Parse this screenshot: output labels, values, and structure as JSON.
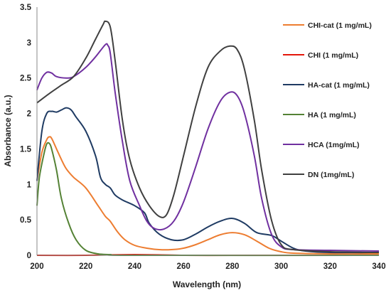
{
  "chart_data": {
    "type": "line",
    "title": "",
    "xlabel": "Wavelength (nm)",
    "ylabel": "Absorbance (a.u.)",
    "xlim": [
      200,
      340
    ],
    "ylim": [
      0,
      3.5
    ],
    "x_ticks": [
      200,
      220,
      240,
      260,
      280,
      300,
      320,
      340
    ],
    "y_ticks": [
      0,
      0.5,
      1,
      1.5,
      2,
      2.5,
      3,
      3.5
    ],
    "y_tick_labels": [
      "0",
      "0.5",
      "1",
      "1.5",
      "2",
      "2.5",
      "3",
      "3.5"
    ],
    "grid": false,
    "legend": "right",
    "series": [
      {
        "name": "CHI-cat (1 mg/mL)",
        "color": "#ed7d31",
        "points": [
          [
            200,
            1.05
          ],
          [
            202,
            1.45
          ],
          [
            204,
            1.63
          ],
          [
            205,
            1.67
          ],
          [
            206,
            1.65
          ],
          [
            208,
            1.5
          ],
          [
            210,
            1.35
          ],
          [
            212,
            1.22
          ],
          [
            215,
            1.1
          ],
          [
            220,
            0.95
          ],
          [
            225,
            0.7
          ],
          [
            228,
            0.55
          ],
          [
            230,
            0.48
          ],
          [
            233,
            0.33
          ],
          [
            236,
            0.22
          ],
          [
            240,
            0.14
          ],
          [
            245,
            0.1
          ],
          [
            250,
            0.08
          ],
          [
            255,
            0.08
          ],
          [
            260,
            0.1
          ],
          [
            265,
            0.15
          ],
          [
            270,
            0.22
          ],
          [
            275,
            0.29
          ],
          [
            280,
            0.32
          ],
          [
            285,
            0.29
          ],
          [
            290,
            0.2
          ],
          [
            295,
            0.1
          ],
          [
            300,
            0.05
          ],
          [
            305,
            0.03
          ],
          [
            320,
            0.02
          ],
          [
            340,
            0.02
          ]
        ]
      },
      {
        "name": "CHI (1 mg/mL)",
        "color": "#e3170a",
        "points": [
          [
            200,
            0.0
          ],
          [
            220,
            0.0
          ],
          [
            240,
            0.01
          ],
          [
            260,
            0.0
          ],
          [
            280,
            0.0
          ],
          [
            300,
            0.0
          ],
          [
            320,
            0.0
          ],
          [
            340,
            0.0
          ]
        ]
      },
      {
        "name": "HA-cat (1 mg/mL)",
        "color": "#1f3b63",
        "points": [
          [
            200,
            1.05
          ],
          [
            202,
            1.75
          ],
          [
            204,
            2.0
          ],
          [
            206,
            2.03
          ],
          [
            208,
            2.02
          ],
          [
            210,
            2.05
          ],
          [
            212,
            2.08
          ],
          [
            214,
            2.05
          ],
          [
            216,
            1.95
          ],
          [
            220,
            1.75
          ],
          [
            224,
            1.4
          ],
          [
            226,
            1.1
          ],
          [
            228,
            1.0
          ],
          [
            230,
            0.95
          ],
          [
            232,
            0.85
          ],
          [
            235,
            0.78
          ],
          [
            240,
            0.7
          ],
          [
            244,
            0.6
          ],
          [
            246,
            0.45
          ],
          [
            250,
            0.3
          ],
          [
            255,
            0.22
          ],
          [
            260,
            0.22
          ],
          [
            265,
            0.3
          ],
          [
            270,
            0.4
          ],
          [
            275,
            0.48
          ],
          [
            280,
            0.52
          ],
          [
            285,
            0.45
          ],
          [
            290,
            0.32
          ],
          [
            296,
            0.28
          ],
          [
            300,
            0.2
          ],
          [
            305,
            0.1
          ],
          [
            310,
            0.06
          ],
          [
            320,
            0.04
          ],
          [
            340,
            0.04
          ]
        ]
      },
      {
        "name": "HA (1 mg/mL)",
        "color": "#548235",
        "points": [
          [
            200,
            0.7
          ],
          [
            201,
            1.1
          ],
          [
            203,
            1.45
          ],
          [
            204,
            1.57
          ],
          [
            205,
            1.58
          ],
          [
            206,
            1.5
          ],
          [
            208,
            1.2
          ],
          [
            210,
            0.8
          ],
          [
            213,
            0.45
          ],
          [
            216,
            0.22
          ],
          [
            220,
            0.07
          ],
          [
            225,
            0.02
          ],
          [
            230,
            0.01
          ],
          [
            240,
            0.0
          ],
          [
            340,
            0.0
          ]
        ]
      },
      {
        "name": "HCA (1mg/mL)",
        "color": "#7030a0",
        "points": [
          [
            200,
            2.33
          ],
          [
            202,
            2.5
          ],
          [
            204,
            2.58
          ],
          [
            206,
            2.57
          ],
          [
            208,
            2.52
          ],
          [
            212,
            2.5
          ],
          [
            215,
            2.52
          ],
          [
            220,
            2.65
          ],
          [
            224,
            2.8
          ],
          [
            228,
            2.97
          ],
          [
            229,
            2.96
          ],
          [
            230,
            2.85
          ],
          [
            232,
            2.3
          ],
          [
            235,
            1.6
          ],
          [
            238,
            1.05
          ],
          [
            242,
            0.7
          ],
          [
            245,
            0.48
          ],
          [
            248,
            0.38
          ],
          [
            252,
            0.37
          ],
          [
            256,
            0.48
          ],
          [
            260,
            0.75
          ],
          [
            265,
            1.25
          ],
          [
            270,
            1.78
          ],
          [
            275,
            2.17
          ],
          [
            279,
            2.3
          ],
          [
            282,
            2.25
          ],
          [
            285,
            2.0
          ],
          [
            289,
            1.4
          ],
          [
            292,
            0.8
          ],
          [
            296,
            0.3
          ],
          [
            300,
            0.12
          ],
          [
            305,
            0.08
          ],
          [
            320,
            0.07
          ],
          [
            340,
            0.06
          ]
        ]
      },
      {
        "name": "DN (1mg/mL)",
        "color": "#404040",
        "points": [
          [
            200,
            2.15
          ],
          [
            205,
            2.28
          ],
          [
            210,
            2.4
          ],
          [
            215,
            2.52
          ],
          [
            220,
            2.78
          ],
          [
            224,
            3.05
          ],
          [
            227,
            3.25
          ],
          [
            228,
            3.3
          ],
          [
            230,
            3.22
          ],
          [
            232,
            2.75
          ],
          [
            235,
            1.9
          ],
          [
            238,
            1.35
          ],
          [
            242,
            0.95
          ],
          [
            246,
            0.7
          ],
          [
            250,
            0.55
          ],
          [
            253,
            0.57
          ],
          [
            256,
            0.85
          ],
          [
            260,
            1.4
          ],
          [
            265,
            2.1
          ],
          [
            270,
            2.65
          ],
          [
            275,
            2.88
          ],
          [
            279,
            2.95
          ],
          [
            282,
            2.9
          ],
          [
            285,
            2.62
          ],
          [
            289,
            1.9
          ],
          [
            292,
            1.2
          ],
          [
            296,
            0.5
          ],
          [
            300,
            0.15
          ],
          [
            305,
            0.08
          ],
          [
            320,
            0.05
          ],
          [
            340,
            0.04
          ]
        ]
      }
    ]
  }
}
